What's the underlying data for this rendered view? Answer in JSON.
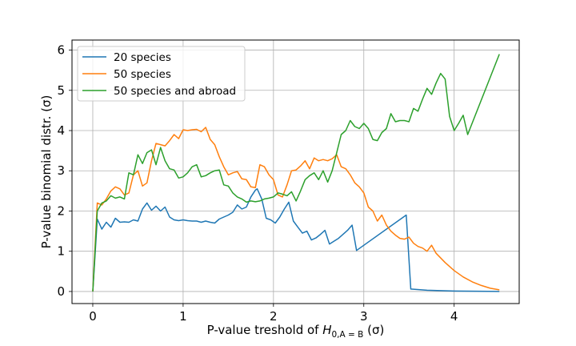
{
  "chart_data": {
    "type": "line",
    "xlabel_prefix": "P-value treshold of ",
    "xlabel_math": "H",
    "xlabel_sub": "0,A = B",
    "xlabel_suffix": " (σ)",
    "ylabel": "P-value binomial distr. (σ)",
    "xlim": [
      -0.23,
      4.72
    ],
    "ylim": [
      -0.3,
      6.25
    ],
    "xticks": [
      0,
      1,
      2,
      3,
      4
    ],
    "yticks": [
      0,
      1,
      2,
      3,
      4,
      5,
      6
    ],
    "grid": true,
    "legend": "upper-left",
    "series": [
      {
        "name": "20 species",
        "color": "#1f77b4",
        "points": [
          [
            0,
            0
          ],
          [
            0.05,
            1.8
          ],
          [
            0.1,
            1.55
          ],
          [
            0.15,
            1.72
          ],
          [
            0.2,
            1.6
          ],
          [
            0.25,
            1.82
          ],
          [
            0.3,
            1.72
          ],
          [
            0.35,
            1.73
          ],
          [
            0.4,
            1.72
          ],
          [
            0.45,
            1.78
          ],
          [
            0.5,
            1.75
          ],
          [
            0.55,
            2.05
          ],
          [
            0.6,
            2.2
          ],
          [
            0.65,
            2.02
          ],
          [
            0.7,
            2.12
          ],
          [
            0.75,
            2.0
          ],
          [
            0.8,
            2.1
          ],
          [
            0.85,
            1.85
          ],
          [
            0.9,
            1.78
          ],
          [
            0.95,
            1.76
          ],
          [
            1.0,
            1.78
          ],
          [
            1.05,
            1.76
          ],
          [
            1.1,
            1.75
          ],
          [
            1.15,
            1.75
          ],
          [
            1.2,
            1.72
          ],
          [
            1.25,
            1.75
          ],
          [
            1.3,
            1.72
          ],
          [
            1.35,
            1.7
          ],
          [
            1.4,
            1.8
          ],
          [
            1.45,
            1.85
          ],
          [
            1.5,
            1.9
          ],
          [
            1.55,
            1.97
          ],
          [
            1.6,
            2.15
          ],
          [
            1.65,
            2.05
          ],
          [
            1.7,
            2.1
          ],
          [
            1.75,
            2.35
          ],
          [
            1.8,
            2.52
          ],
          [
            1.82,
            2.55
          ],
          [
            1.87,
            2.3
          ],
          [
            1.92,
            1.82
          ],
          [
            1.97,
            1.78
          ],
          [
            2.02,
            1.7
          ],
          [
            2.07,
            1.85
          ],
          [
            2.12,
            2.05
          ],
          [
            2.17,
            2.22
          ],
          [
            2.22,
            1.75
          ],
          [
            2.27,
            1.6
          ],
          [
            2.32,
            1.45
          ],
          [
            2.37,
            1.5
          ],
          [
            2.42,
            1.28
          ],
          [
            2.47,
            1.33
          ],
          [
            2.52,
            1.42
          ],
          [
            2.57,
            1.52
          ],
          [
            2.62,
            1.18
          ],
          [
            2.67,
            1.25
          ],
          [
            2.72,
            1.32
          ],
          [
            2.77,
            1.42
          ],
          [
            2.82,
            1.52
          ],
          [
            2.87,
            1.65
          ],
          [
            2.92,
            1.02
          ],
          [
            3.47,
            1.9
          ],
          [
            3.52,
            0.06
          ],
          [
            3.7,
            0.03
          ],
          [
            4.0,
            0.01
          ],
          [
            4.5,
            0.0
          ]
        ]
      },
      {
        "name": "50 species",
        "color": "#ff7f0e",
        "points": [
          [
            0,
            0
          ],
          [
            0.05,
            2.2
          ],
          [
            0.1,
            2.15
          ],
          [
            0.15,
            2.3
          ],
          [
            0.2,
            2.5
          ],
          [
            0.25,
            2.6
          ],
          [
            0.3,
            2.55
          ],
          [
            0.35,
            2.4
          ],
          [
            0.4,
            2.45
          ],
          [
            0.45,
            2.9
          ],
          [
            0.5,
            3.0
          ],
          [
            0.55,
            2.62
          ],
          [
            0.6,
            2.7
          ],
          [
            0.65,
            3.25
          ],
          [
            0.7,
            3.68
          ],
          [
            0.75,
            3.65
          ],
          [
            0.8,
            3.62
          ],
          [
            0.85,
            3.75
          ],
          [
            0.9,
            3.9
          ],
          [
            0.95,
            3.8
          ],
          [
            1.0,
            4.02
          ],
          [
            1.05,
            4.0
          ],
          [
            1.1,
            4.02
          ],
          [
            1.15,
            4.03
          ],
          [
            1.2,
            3.97
          ],
          [
            1.25,
            4.08
          ],
          [
            1.3,
            3.78
          ],
          [
            1.35,
            3.65
          ],
          [
            1.4,
            3.35
          ],
          [
            1.45,
            3.1
          ],
          [
            1.5,
            2.9
          ],
          [
            1.55,
            2.95
          ],
          [
            1.6,
            2.98
          ],
          [
            1.65,
            2.8
          ],
          [
            1.7,
            2.78
          ],
          [
            1.75,
            2.6
          ],
          [
            1.8,
            2.58
          ],
          [
            1.85,
            3.15
          ],
          [
            1.9,
            3.1
          ],
          [
            1.95,
            2.9
          ],
          [
            2.0,
            2.78
          ],
          [
            2.05,
            2.4
          ],
          [
            2.1,
            2.35
          ],
          [
            2.15,
            2.65
          ],
          [
            2.2,
            3.0
          ],
          [
            2.25,
            3.02
          ],
          [
            2.3,
            3.12
          ],
          [
            2.35,
            3.25
          ],
          [
            2.4,
            3.05
          ],
          [
            2.45,
            3.32
          ],
          [
            2.5,
            3.25
          ],
          [
            2.55,
            3.28
          ],
          [
            2.6,
            3.25
          ],
          [
            2.65,
            3.3
          ],
          [
            2.7,
            3.4
          ],
          [
            2.75,
            3.1
          ],
          [
            2.8,
            3.05
          ],
          [
            2.85,
            2.9
          ],
          [
            2.9,
            2.7
          ],
          [
            2.95,
            2.6
          ],
          [
            3.0,
            2.45
          ],
          [
            3.05,
            2.1
          ],
          [
            3.1,
            2.0
          ],
          [
            3.15,
            1.75
          ],
          [
            3.2,
            1.9
          ],
          [
            3.25,
            1.65
          ],
          [
            3.3,
            1.5
          ],
          [
            3.35,
            1.4
          ],
          [
            3.4,
            1.32
          ],
          [
            3.45,
            1.3
          ],
          [
            3.5,
            1.35
          ],
          [
            3.55,
            1.2
          ],
          [
            3.6,
            1.12
          ],
          [
            3.65,
            1.08
          ],
          [
            3.7,
            1.0
          ],
          [
            3.75,
            1.15
          ],
          [
            3.8,
            0.95
          ],
          [
            3.9,
            0.72
          ],
          [
            4.0,
            0.52
          ],
          [
            4.1,
            0.36
          ],
          [
            4.2,
            0.24
          ],
          [
            4.3,
            0.15
          ],
          [
            4.4,
            0.08
          ],
          [
            4.5,
            0.04
          ]
        ]
      },
      {
        "name": "50 species and abroad",
        "color": "#2ca02c",
        "points": [
          [
            0,
            0
          ],
          [
            0.05,
            2.0
          ],
          [
            0.1,
            2.2
          ],
          [
            0.15,
            2.25
          ],
          [
            0.2,
            2.38
          ],
          [
            0.25,
            2.32
          ],
          [
            0.3,
            2.35
          ],
          [
            0.35,
            2.3
          ],
          [
            0.4,
            2.95
          ],
          [
            0.45,
            2.9
          ],
          [
            0.5,
            3.4
          ],
          [
            0.55,
            3.18
          ],
          [
            0.6,
            3.45
          ],
          [
            0.65,
            3.52
          ],
          [
            0.7,
            3.15
          ],
          [
            0.75,
            3.58
          ],
          [
            0.8,
            3.25
          ],
          [
            0.85,
            3.05
          ],
          [
            0.9,
            3.02
          ],
          [
            0.95,
            2.82
          ],
          [
            1.0,
            2.85
          ],
          [
            1.05,
            2.95
          ],
          [
            1.1,
            3.1
          ],
          [
            1.15,
            3.15
          ],
          [
            1.2,
            2.85
          ],
          [
            1.25,
            2.88
          ],
          [
            1.3,
            2.95
          ],
          [
            1.35,
            3.0
          ],
          [
            1.4,
            3.02
          ],
          [
            1.45,
            2.65
          ],
          [
            1.5,
            2.62
          ],
          [
            1.55,
            2.45
          ],
          [
            1.6,
            2.35
          ],
          [
            1.65,
            2.3
          ],
          [
            1.7,
            2.22
          ],
          [
            1.75,
            2.25
          ],
          [
            1.8,
            2.23
          ],
          [
            1.85,
            2.25
          ],
          [
            1.9,
            2.3
          ],
          [
            1.95,
            2.32
          ],
          [
            2.0,
            2.35
          ],
          [
            2.05,
            2.45
          ],
          [
            2.1,
            2.42
          ],
          [
            2.15,
            2.38
          ],
          [
            2.2,
            2.48
          ],
          [
            2.25,
            2.25
          ],
          [
            2.3,
            2.5
          ],
          [
            2.35,
            2.78
          ],
          [
            2.4,
            2.88
          ],
          [
            2.45,
            2.95
          ],
          [
            2.5,
            2.78
          ],
          [
            2.55,
            3.0
          ],
          [
            2.6,
            2.72
          ],
          [
            2.65,
            3.0
          ],
          [
            2.7,
            3.45
          ],
          [
            2.75,
            3.9
          ],
          [
            2.8,
            4.0
          ],
          [
            2.85,
            4.25
          ],
          [
            2.9,
            4.1
          ],
          [
            2.95,
            4.05
          ],
          [
            3.0,
            4.18
          ],
          [
            3.05,
            4.05
          ],
          [
            3.1,
            3.78
          ],
          [
            3.15,
            3.75
          ],
          [
            3.2,
            3.95
          ],
          [
            3.25,
            4.05
          ],
          [
            3.3,
            4.42
          ],
          [
            3.35,
            4.22
          ],
          [
            3.4,
            4.25
          ],
          [
            3.45,
            4.25
          ],
          [
            3.5,
            4.22
          ],
          [
            3.55,
            4.55
          ],
          [
            3.6,
            4.48
          ],
          [
            3.65,
            4.78
          ],
          [
            3.7,
            5.05
          ],
          [
            3.75,
            4.9
          ],
          [
            3.8,
            5.18
          ],
          [
            3.85,
            5.42
          ],
          [
            3.9,
            5.28
          ],
          [
            3.95,
            4.35
          ],
          [
            4.0,
            4.0
          ],
          [
            4.05,
            4.18
          ],
          [
            4.1,
            4.38
          ],
          [
            4.15,
            3.9
          ],
          [
            4.5,
            5.9
          ]
        ]
      }
    ]
  }
}
